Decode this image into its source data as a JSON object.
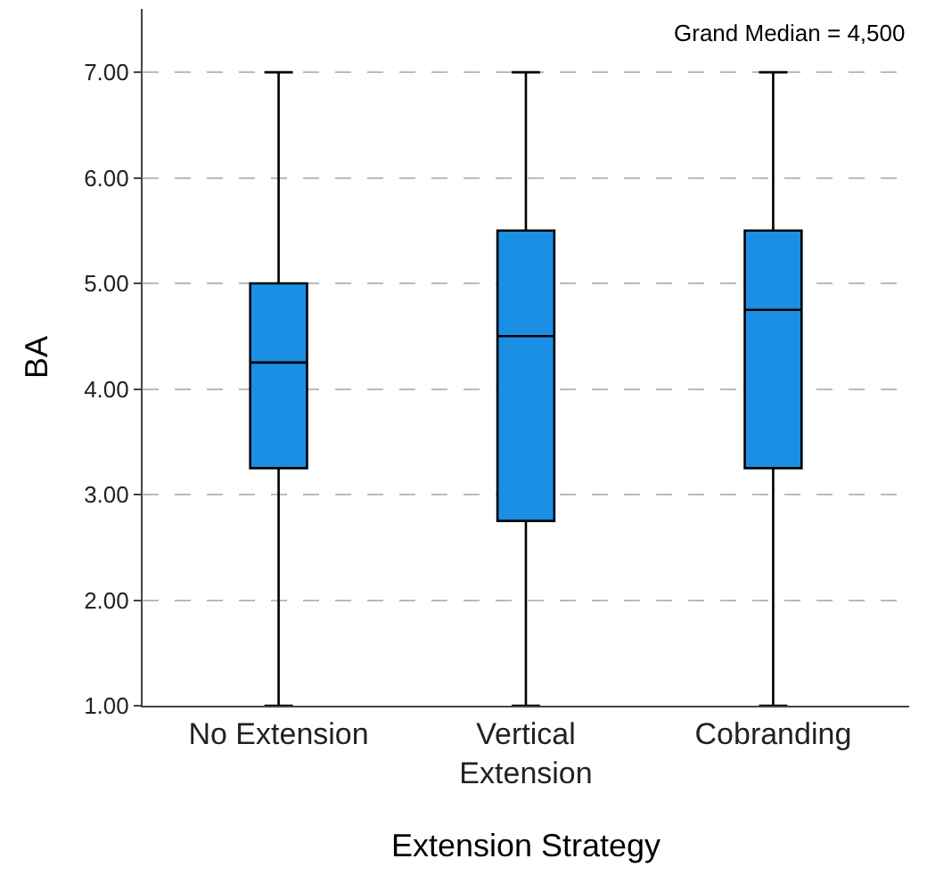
{
  "chart_data": {
    "type": "box",
    "xlabel": "Extension Strategy",
    "ylabel": "BA",
    "categories": [
      "No Extension",
      "Vertical\nExtension",
      "Cobranding"
    ],
    "series": [
      {
        "color": "#1a8fe3",
        "boxes": [
          {
            "low": 1,
            "q1": 3.25,
            "median": 4.25,
            "q3": 5,
            "high": 7
          },
          {
            "low": 1,
            "q1": 2.75,
            "median": 4.5,
            "q3": 5.5,
            "high": 7
          },
          {
            "low": 1,
            "q1": 3.25,
            "median": 4.75,
            "q3": 5.5,
            "high": 7
          }
        ]
      }
    ],
    "ylim": [
      1,
      7.6
    ],
    "yticks": [
      {
        "value": 1,
        "label": "1.00"
      },
      {
        "value": 2,
        "label": "2.00"
      },
      {
        "value": 3,
        "label": "3.00"
      },
      {
        "value": 4,
        "label": "4.00"
      },
      {
        "value": 5,
        "label": "5.00"
      },
      {
        "value": 6,
        "label": "6.00"
      },
      {
        "value": 7,
        "label": "7.00"
      }
    ],
    "grid": "y",
    "annotations": [
      "Grand Median = 4,500"
    ]
  }
}
